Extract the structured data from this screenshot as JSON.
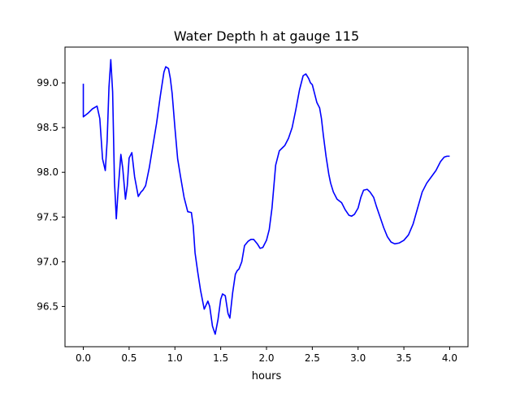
{
  "chart_data": {
    "type": "line",
    "title": "Water Depth h at gauge 115",
    "xlabel": "hours",
    "ylabel": "",
    "xlim": [
      -0.2,
      4.2
    ],
    "ylim": [
      96.05,
      99.4
    ],
    "xticks": [
      0.0,
      0.5,
      1.0,
      1.5,
      2.0,
      2.5,
      3.0,
      3.5,
      4.0
    ],
    "xtick_labels": [
      "0.0",
      "0.5",
      "1.0",
      "1.5",
      "2.0",
      "2.5",
      "3.0",
      "3.5",
      "4.0"
    ],
    "yticks": [
      96.5,
      97.0,
      97.5,
      98.0,
      98.5,
      99.0
    ],
    "ytick_labels": [
      "96.5",
      "97.0",
      "97.5",
      "98.0",
      "98.5",
      "99.0"
    ],
    "grid": false,
    "series": [
      {
        "color": "#0000ff",
        "x": [
          0.0,
          0.0,
          0.05,
          0.1,
          0.15,
          0.18,
          0.21,
          0.24,
          0.26,
          0.28,
          0.3,
          0.32,
          0.34,
          0.36,
          0.38,
          0.41,
          0.43,
          0.46,
          0.48,
          0.5,
          0.53,
          0.56,
          0.6,
          0.63,
          0.65,
          0.68,
          0.72,
          0.76,
          0.8,
          0.84,
          0.88,
          0.9,
          0.93,
          0.95,
          0.97,
          1.0,
          1.03,
          1.06,
          1.1,
          1.14,
          1.18,
          1.2,
          1.22,
          1.25,
          1.28,
          1.32,
          1.36,
          1.38,
          1.41,
          1.44,
          1.47,
          1.5,
          1.52,
          1.55,
          1.58,
          1.6,
          1.63,
          1.66,
          1.68,
          1.7,
          1.73,
          1.76,
          1.8,
          1.83,
          1.86,
          1.9,
          1.93,
          1.96,
          2.0,
          2.03,
          2.06,
          2.1,
          2.14,
          2.18,
          2.2,
          2.24,
          2.28,
          2.32,
          2.36,
          2.4,
          2.43,
          2.46,
          2.48,
          2.5,
          2.52,
          2.55,
          2.58,
          2.6,
          2.62,
          2.65,
          2.68,
          2.7,
          2.73,
          2.77,
          2.82,
          2.86,
          2.9,
          2.93,
          2.96,
          3.0,
          3.03,
          3.06,
          3.1,
          3.13,
          3.17,
          3.2,
          3.24,
          3.28,
          3.32,
          3.36,
          3.4,
          3.45,
          3.5,
          3.55,
          3.6,
          3.65,
          3.7,
          3.75,
          3.8,
          3.85,
          3.9,
          3.94,
          3.97,
          4.0
        ],
        "y": [
          98.99,
          98.62,
          98.66,
          98.71,
          98.74,
          98.6,
          98.15,
          98.02,
          98.35,
          98.95,
          99.26,
          98.9,
          97.9,
          97.48,
          97.8,
          98.2,
          98.05,
          97.7,
          97.85,
          98.16,
          98.22,
          97.95,
          97.73,
          97.78,
          97.8,
          97.85,
          98.05,
          98.3,
          98.55,
          98.85,
          99.12,
          99.18,
          99.16,
          99.05,
          98.88,
          98.5,
          98.15,
          97.96,
          97.72,
          97.56,
          97.55,
          97.4,
          97.1,
          96.88,
          96.68,
          96.47,
          96.56,
          96.5,
          96.28,
          96.19,
          96.35,
          96.58,
          96.64,
          96.62,
          96.42,
          96.37,
          96.65,
          96.86,
          96.9,
          96.92,
          97.0,
          97.18,
          97.23,
          97.25,
          97.25,
          97.2,
          97.15,
          97.16,
          97.24,
          97.36,
          97.6,
          98.08,
          98.24,
          98.28,
          98.3,
          98.38,
          98.5,
          98.7,
          98.92,
          99.08,
          99.1,
          99.05,
          99.0,
          98.98,
          98.9,
          98.78,
          98.72,
          98.6,
          98.42,
          98.18,
          97.98,
          97.88,
          97.78,
          97.7,
          97.66,
          97.58,
          97.52,
          97.51,
          97.53,
          97.6,
          97.72,
          97.8,
          97.81,
          97.78,
          97.72,
          97.62,
          97.5,
          97.38,
          97.28,
          97.22,
          97.2,
          97.21,
          97.24,
          97.3,
          97.42,
          97.6,
          97.78,
          97.88,
          97.95,
          98.02,
          98.12,
          98.17,
          98.18,
          98.18
        ]
      }
    ]
  }
}
